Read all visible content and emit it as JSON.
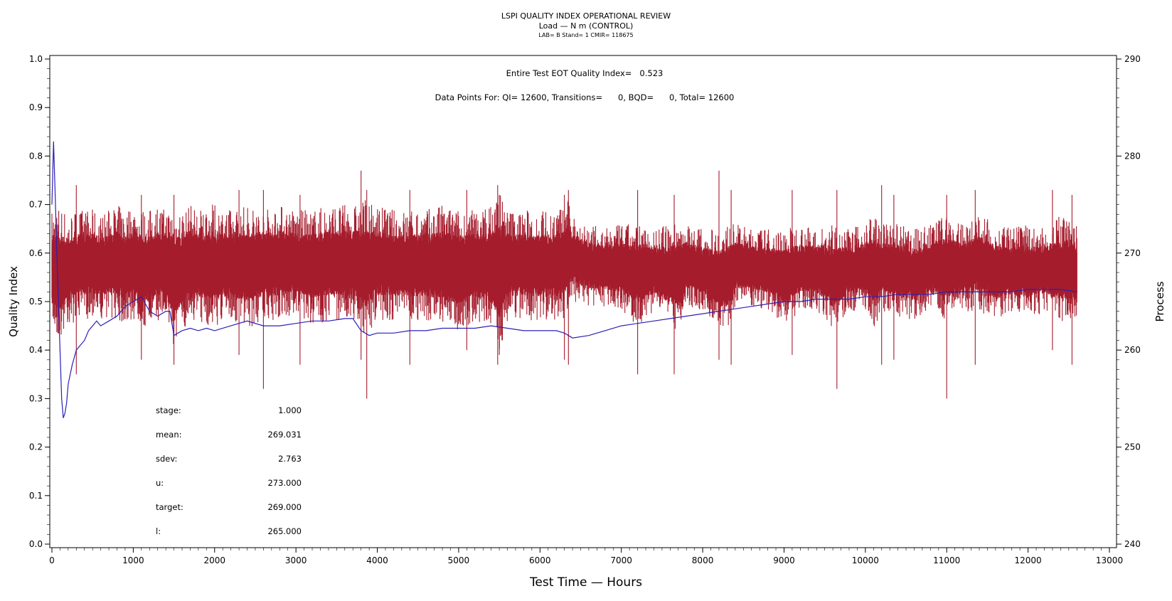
{
  "chart_data": {
    "type": "line",
    "title": "LSPI QUALITY INDEX OPERATIONAL REVIEW",
    "subtitle": "Load — N m (CONTROL)",
    "subtitle2": "LAB= B Stand= 1 CMIR= 118675",
    "annotation_eot": "Entire Test EOT Quality Index=   0.523",
    "annotation_points": "Data Points For: QI= 12600, Transitions=      0, BQD=      0, Total= 12600",
    "xlabel": "Test Time — Hours",
    "ylabel_left": "Quality Index",
    "ylabel_right": "Process",
    "xlim": [
      0,
      13000
    ],
    "ylim_left": [
      0,
      1.0
    ],
    "ylim_right": [
      240,
      290
    ],
    "x_ticks": [
      "0",
      "1000",
      "2000",
      "3000",
      "4000",
      "5000",
      "6000",
      "7000",
      "8000",
      "9000",
      "10000",
      "11000",
      "12000",
      "13000"
    ],
    "y_left_ticks": [
      "0.0",
      "0.1",
      "0.2",
      "0.3",
      "0.4",
      "0.5",
      "0.6",
      "0.7",
      "0.8",
      "0.9",
      "1.0"
    ],
    "y_right_ticks": [
      "240",
      "250",
      "260",
      "270",
      "280",
      "290"
    ],
    "series": [
      {
        "axis": "right",
        "color": "#a51c2c",
        "x": [
          0,
          100,
          200,
          300,
          400,
          500,
          600,
          700,
          800,
          900,
          1000,
          1100,
          1200,
          1300,
          1400,
          1500,
          1600,
          1700,
          1800,
          1900,
          2000,
          2200,
          2400,
          2600,
          2800,
          3000,
          3200,
          3400,
          3600,
          3800,
          3850,
          3900,
          4000,
          4200,
          4400,
          4600,
          4800,
          5000,
          5200,
          5400,
          5500,
          5600,
          5800,
          6000,
          6200,
          6300,
          6350,
          6400,
          6600,
          6800,
          7000,
          7200,
          7400,
          7600,
          7700,
          7800,
          8000,
          8200,
          8300,
          8400,
          8600,
          8800,
          9000,
          9200,
          9400,
          9600,
          9800,
          10000,
          10100,
          10200,
          10400,
          10600,
          10800,
          11000,
          11200,
          11400,
          11600,
          11800,
          12000,
          12200,
          12400,
          12600
        ],
        "low": [
          262,
          261,
          262.5,
          263,
          263,
          263.5,
          263,
          263.5,
          263,
          262.5,
          263,
          262.5,
          262,
          263,
          263.5,
          260,
          262,
          263,
          263,
          262.5,
          262.5,
          263,
          262,
          263,
          263,
          263.5,
          262.5,
          263,
          263,
          262.5,
          261,
          262,
          263,
          263,
          263,
          263,
          262.5,
          262,
          263,
          262,
          259.5,
          263,
          263,
          263,
          263,
          263,
          264.5,
          265,
          264.5,
          264.5,
          264,
          262.5,
          264,
          262.5,
          262,
          264.5,
          264,
          262.5,
          262,
          264.5,
          264.5,
          264,
          262.5,
          264,
          264,
          262,
          264,
          264,
          262,
          264,
          263.5,
          263,
          264,
          263,
          264,
          264,
          263,
          264,
          263,
          264,
          262.5,
          263
        ],
        "high": [
          274.5,
          275,
          274,
          274.5,
          274.5,
          274.5,
          274,
          274.5,
          275,
          274.5,
          275,
          274.5,
          274.5,
          275,
          274.5,
          275,
          274.5,
          275,
          274.5,
          275,
          275,
          274.5,
          275,
          274.5,
          275,
          274.5,
          274.5,
          275,
          275,
          275,
          276,
          275,
          275,
          274.5,
          274.5,
          274.5,
          275,
          274.5,
          274.5,
          275,
          277,
          274.5,
          274.5,
          274.5,
          274.5,
          275,
          275.5,
          274,
          273,
          272.5,
          273,
          273,
          272.5,
          273,
          273.5,
          273,
          272.5,
          272.5,
          273,
          273,
          272.5,
          272.5,
          272.5,
          273,
          272.5,
          273,
          272.5,
          273,
          274.5,
          273,
          273,
          272.5,
          273,
          274,
          273,
          274,
          273,
          272.5,
          273,
          272.5,
          274,
          273
        ],
        "spikes_min": [
          257.5,
          259,
          258.5,
          259.5,
          256,
          258.5,
          259,
          255,
          258.5,
          260,
          258.5,
          259.5,
          259,
          258.5,
          257.5
        ],
        "spikes_max": [
          277,
          276,
          276,
          276.5,
          276.5,
          276,
          278.5,
          276.5,
          276.5,
          276.5
        ]
      },
      {
        "axis": "left",
        "color": "#2b1fb8",
        "x": [
          0,
          20,
          40,
          60,
          80,
          100,
          120,
          140,
          160,
          180,
          200,
          250,
          300,
          350,
          400,
          450,
          500,
          550,
          600,
          700,
          800,
          900,
          1000,
          1100,
          1200,
          1300,
          1400,
          1450,
          1500,
          1600,
          1700,
          1800,
          1900,
          2000,
          2200,
          2400,
          2600,
          2800,
          3000,
          3200,
          3400,
          3600,
          3700,
          3800,
          3900,
          4000,
          4200,
          4400,
          4600,
          4800,
          5000,
          5200,
          5400,
          5600,
          5800,
          6000,
          6200,
          6300,
          6350,
          6400,
          6600,
          6800,
          7000,
          7200,
          7400,
          7600,
          7800,
          8000,
          8200,
          8400,
          8600,
          8800,
          9000,
          9200,
          9400,
          9600,
          9800,
          10000,
          10200,
          10400,
          10600,
          10800,
          11000,
          11200,
          11400,
          11600,
          11800,
          12000,
          12200,
          12400,
          12600
        ],
        "values": [
          0.7,
          0.83,
          0.72,
          0.6,
          0.5,
          0.4,
          0.3,
          0.26,
          0.27,
          0.29,
          0.33,
          0.37,
          0.4,
          0.41,
          0.42,
          0.44,
          0.45,
          0.46,
          0.45,
          0.46,
          0.47,
          0.49,
          0.5,
          0.51,
          0.48,
          0.47,
          0.48,
          0.48,
          0.43,
          0.44,
          0.445,
          0.44,
          0.445,
          0.44,
          0.45,
          0.46,
          0.45,
          0.45,
          0.455,
          0.46,
          0.46,
          0.465,
          0.465,
          0.44,
          0.43,
          0.435,
          0.435,
          0.44,
          0.44,
          0.445,
          0.445,
          0.445,
          0.45,
          0.445,
          0.44,
          0.44,
          0.44,
          0.435,
          0.43,
          0.425,
          0.43,
          0.44,
          0.45,
          0.455,
          0.46,
          0.465,
          0.47,
          0.475,
          0.48,
          0.485,
          0.49,
          0.495,
          0.5,
          0.5,
          0.505,
          0.505,
          0.505,
          0.51,
          0.51,
          0.515,
          0.515,
          0.515,
          0.52,
          0.52,
          0.52,
          0.52,
          0.52,
          0.525,
          0.525,
          0.525,
          0.52
        ]
      }
    ],
    "stats": [
      {
        "label": "stage:",
        "value": "1.000"
      },
      {
        "label": "mean:",
        "value": "269.031"
      },
      {
        "label": "sdev:",
        "value": "2.763"
      },
      {
        "label": "u:",
        "value": "273.000"
      },
      {
        "label": "target:",
        "value": "269.000"
      },
      {
        "label": "l:",
        "value": "265.000"
      }
    ],
    "grid": false
  }
}
